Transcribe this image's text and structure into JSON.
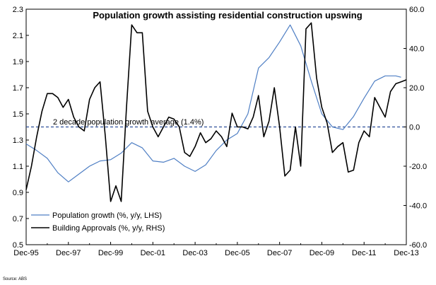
{
  "chart_data": {
    "type": "line",
    "title": "Population growth assisting residential construction upswing",
    "x_tick_labels": [
      "Dec-95",
      "Dec-97",
      "Dec-99",
      "Dec-01",
      "Dec-03",
      "Dec-05",
      "Dec-07",
      "Dec-09",
      "Dec-11",
      "Dec-13"
    ],
    "y_left": {
      "range": [
        0.5,
        2.3
      ],
      "tick_labels": [
        "0.5",
        "0.7",
        "0.9",
        "1.1",
        "1.3",
        "1.5",
        "1.7",
        "1.9",
        "2.1",
        "2.3"
      ]
    },
    "y_right": {
      "range": [
        -60,
        60
      ],
      "tick_labels": [
        "-60.0",
        "-40.0",
        "-20.0",
        "0.0",
        "20.0",
        "40.0",
        "60.0"
      ]
    },
    "x_range": [
      1995.95,
      2013.95
    ],
    "reference_line": {
      "value": 1.4,
      "axis": "left",
      "color": "#2e4f9a",
      "label": "2 decade population growth average (1.4%)"
    },
    "series": [
      {
        "name": "Population growth (%, y/y, LHS)",
        "axis": "left",
        "color": "#4f7fc4",
        "x": [
          1995.95,
          1996.45,
          1996.95,
          1997.45,
          1997.95,
          1998.45,
          1998.95,
          1999.45,
          1999.95,
          2000.45,
          2000.95,
          2001.45,
          2001.95,
          2002.45,
          2002.95,
          2003.45,
          2003.95,
          2004.45,
          2004.95,
          2005.45,
          2005.95,
          2006.45,
          2006.95,
          2007.45,
          2007.95,
          2008.45,
          2008.95,
          2009.45,
          2009.95,
          2010.45,
          2010.95,
          2011.45,
          2011.95,
          2012.45,
          2012.95,
          2013.45,
          2013.7
        ],
        "values": [
          1.27,
          1.22,
          1.16,
          1.05,
          0.98,
          1.04,
          1.1,
          1.14,
          1.15,
          1.2,
          1.28,
          1.24,
          1.14,
          1.13,
          1.16,
          1.1,
          1.06,
          1.11,
          1.22,
          1.3,
          1.35,
          1.5,
          1.85,
          1.93,
          2.05,
          2.18,
          2.02,
          1.75,
          1.5,
          1.4,
          1.38,
          1.48,
          1.62,
          1.75,
          1.79,
          1.79,
          1.78
        ]
      },
      {
        "name": "Building Approvals (%, y/y, RHS)",
        "axis": "right",
        "color": "#000000",
        "x": [
          1995.95,
          1996.2,
          1996.45,
          1996.7,
          1996.95,
          1997.2,
          1997.45,
          1997.7,
          1997.95,
          1998.2,
          1998.45,
          1998.7,
          1998.95,
          1999.2,
          1999.45,
          1999.7,
          1999.95,
          2000.2,
          2000.45,
          2000.7,
          2000.95,
          2001.2,
          2001.45,
          2001.7,
          2001.95,
          2002.2,
          2002.45,
          2002.7,
          2002.95,
          2003.2,
          2003.45,
          2003.7,
          2003.95,
          2004.2,
          2004.45,
          2004.7,
          2004.95,
          2005.2,
          2005.45,
          2005.7,
          2005.95,
          2006.2,
          2006.45,
          2006.7,
          2006.95,
          2007.2,
          2007.45,
          2007.7,
          2007.95,
          2008.2,
          2008.45,
          2008.7,
          2008.95,
          2009.2,
          2009.45,
          2009.7,
          2009.95,
          2010.2,
          2010.45,
          2010.7,
          2010.95,
          2011.2,
          2011.45,
          2011.7,
          2011.95,
          2012.2,
          2012.45,
          2012.7,
          2012.95,
          2013.2,
          2013.45,
          2013.7,
          2013.95
        ],
        "values": [
          -32,
          -20,
          -5,
          8,
          17,
          17,
          15,
          10,
          14,
          5,
          0,
          -2,
          14,
          20,
          23,
          -5,
          -38,
          -30,
          -38,
          10,
          52,
          48,
          48,
          8,
          0,
          -5,
          0,
          5,
          4,
          0,
          -13,
          -15,
          -10,
          -3,
          -8,
          -6,
          -2,
          -5,
          -10,
          7,
          0,
          0,
          -1,
          5,
          16,
          -5,
          3,
          20,
          0,
          -25,
          -22,
          0,
          -20,
          50,
          53,
          25,
          10,
          2,
          -13,
          -10,
          -8,
          -23,
          -22,
          -8,
          -2,
          -5,
          15,
          10,
          5,
          18,
          22,
          23,
          24
        ]
      }
    ],
    "source": "Source: ABS"
  }
}
